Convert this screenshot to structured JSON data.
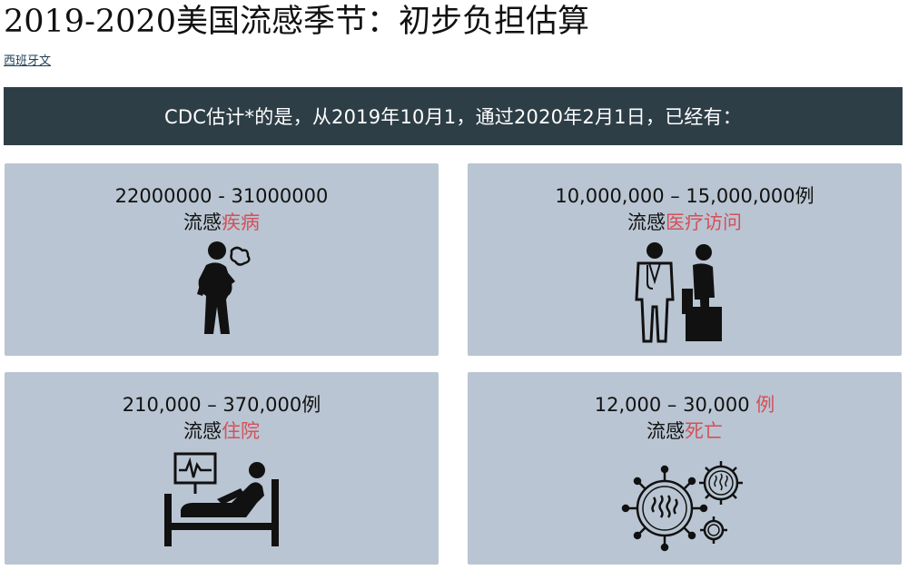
{
  "title": "2019-2020美国流感季节：初步负担估算",
  "language_link": "西班牙文",
  "banner": "CDC估计*的是，从2019年10月1，通过2020年2月1日，已经有：",
  "cards": [
    {
      "stat": "22000000 - 31000000",
      "stat_suffix": "",
      "label_prefix": "流感",
      "label_highlight": "疾病",
      "icon": "sick-person-coughing-icon"
    },
    {
      "stat": "10,000,000 – 15,000,000例",
      "stat_suffix": "",
      "label_prefix": "流感",
      "label_highlight": "医疗访问",
      "icon": "doctor-patient-icon"
    },
    {
      "stat": "210,000 – 370,000例",
      "stat_suffix": "",
      "label_prefix": "流感",
      "label_highlight": "住院",
      "icon": "hospital-bed-icon"
    },
    {
      "stat": "12,000 – 30,000 ",
      "stat_suffix": "例",
      "label_prefix": "流感",
      "label_highlight": "死亡",
      "icon": "virus-icon"
    }
  ],
  "colors": {
    "banner_bg": "#2e3e47",
    "card_bg": "#b9c5d2",
    "highlight": "#d4505a"
  }
}
